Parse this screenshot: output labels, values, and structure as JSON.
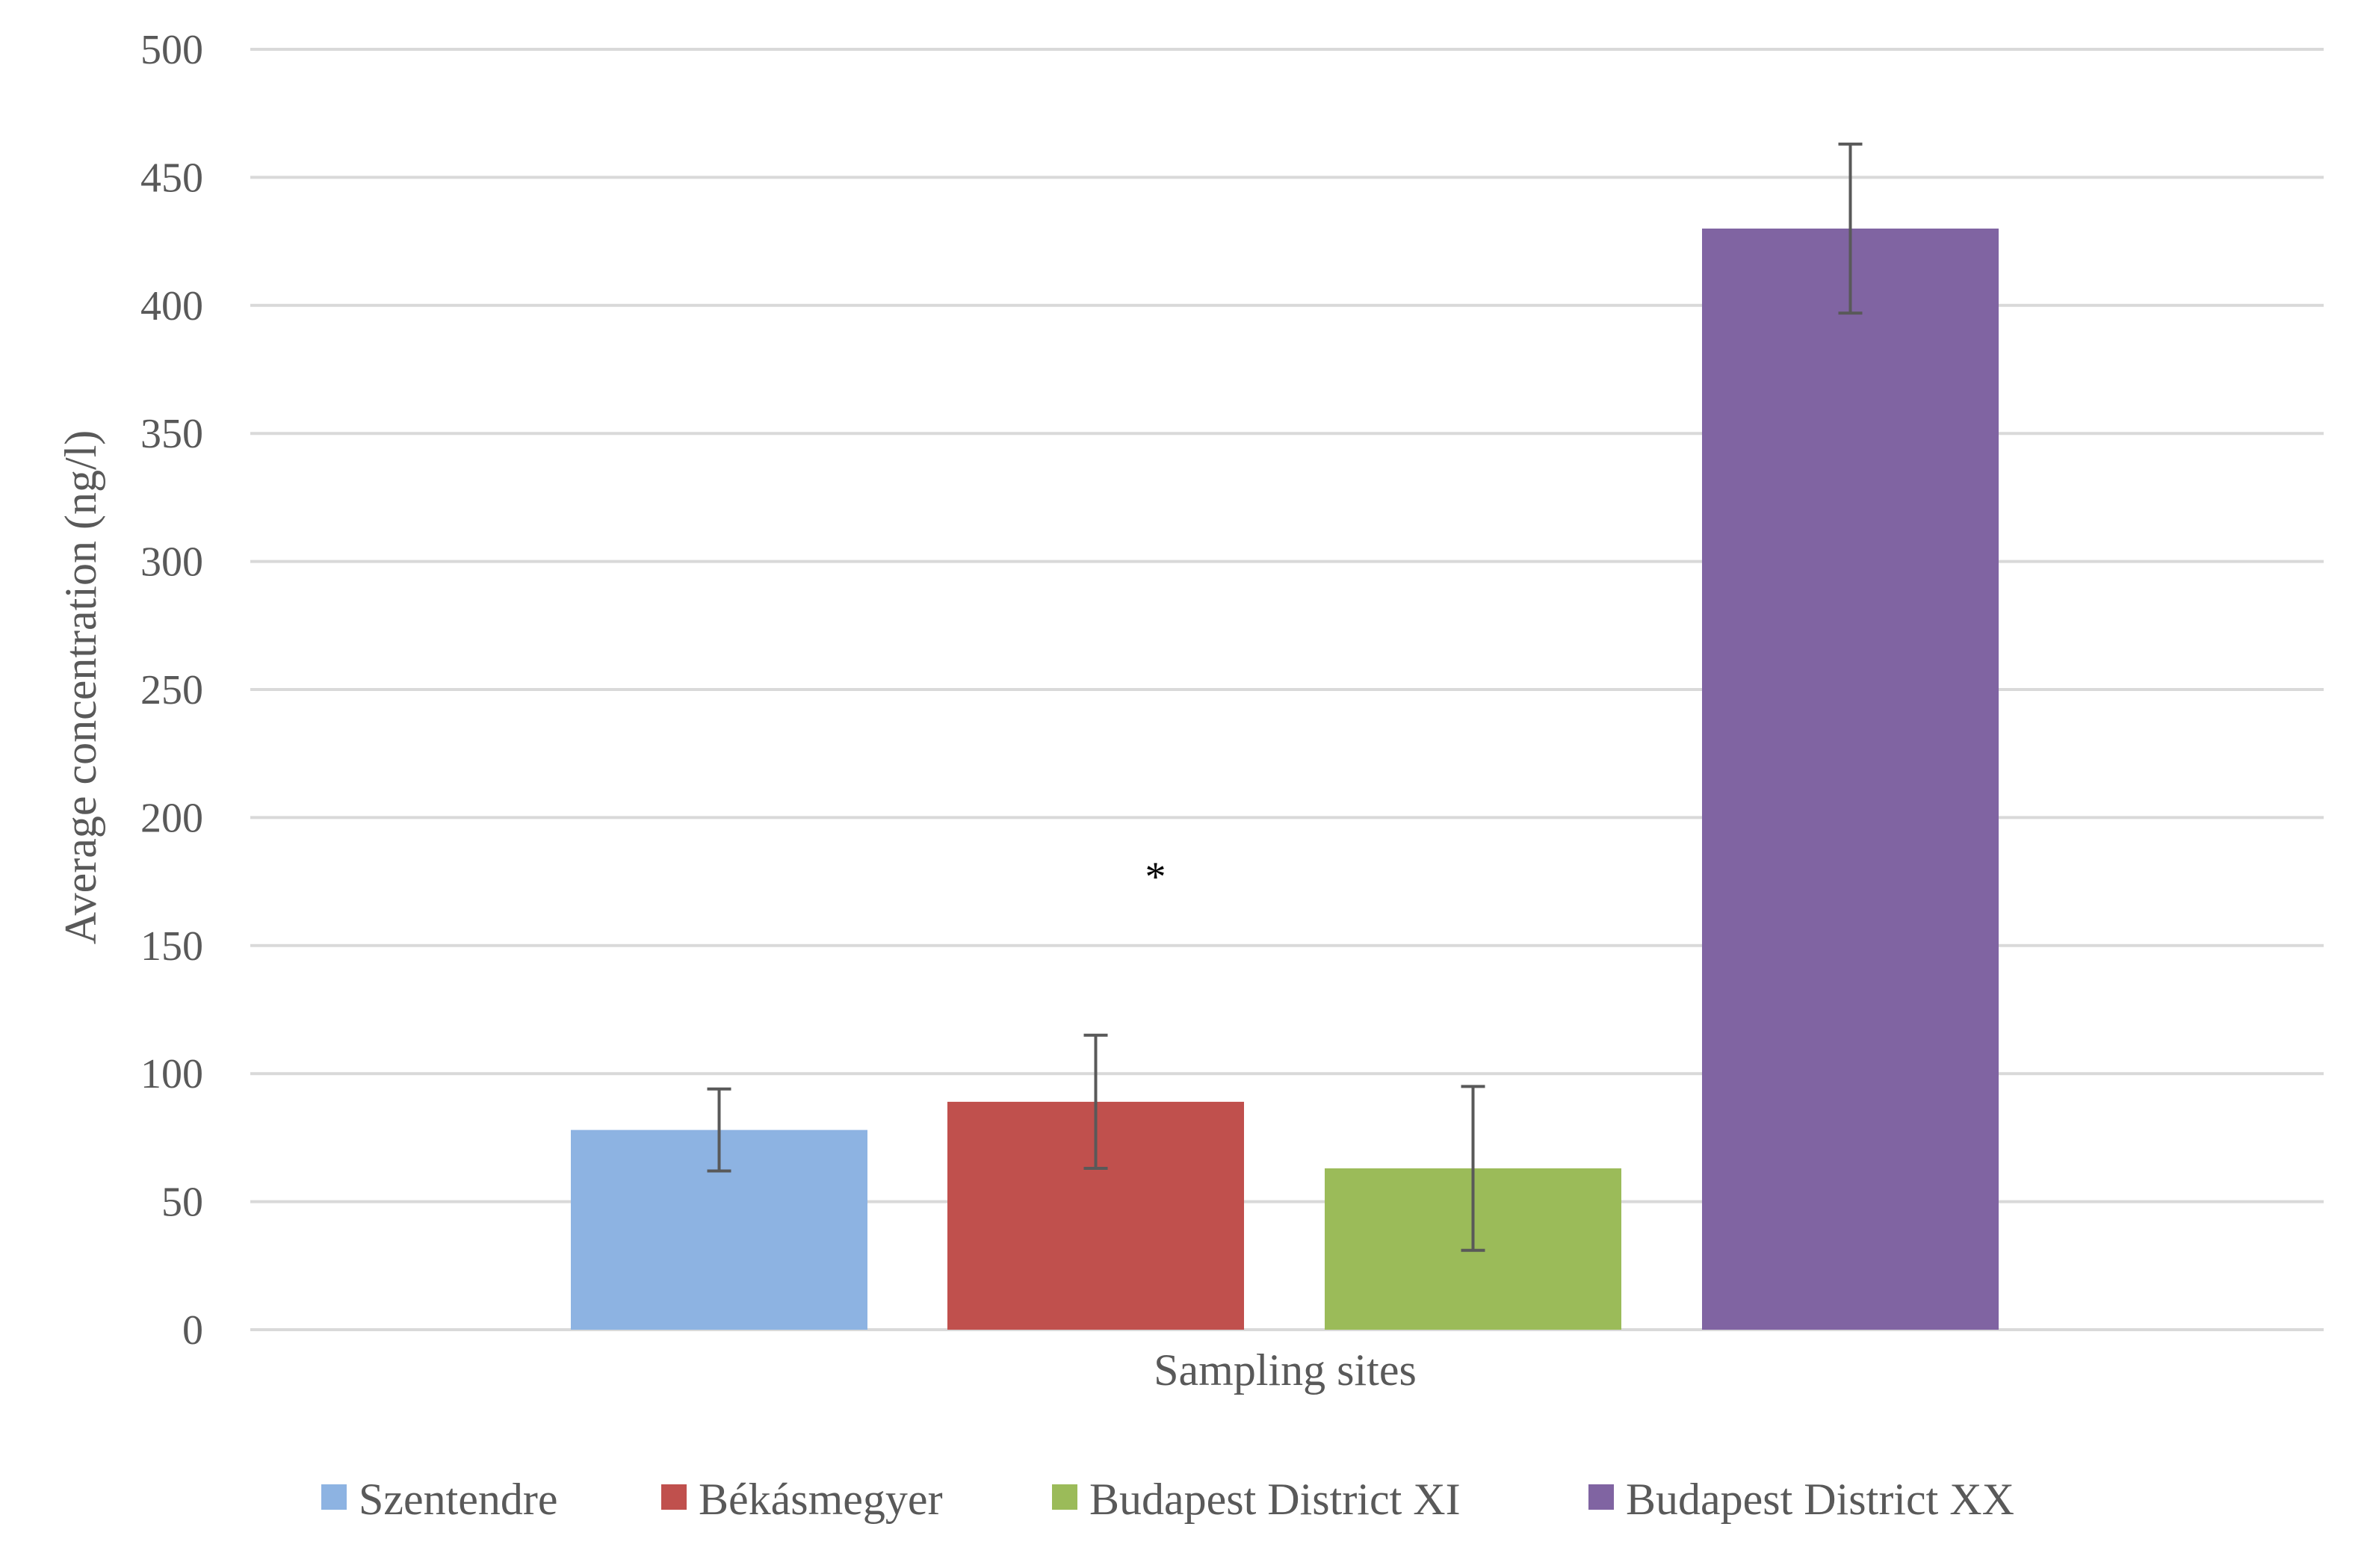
{
  "chart_data": {
    "type": "bar",
    "title": "",
    "xlabel": "Sampling sites",
    "ylabel": "Average concentration (ng/l)",
    "ylim": [
      0,
      500
    ],
    "yticks": [
      0,
      50,
      100,
      150,
      200,
      250,
      300,
      350,
      400,
      450,
      500
    ],
    "grid": true,
    "legend_position": "bottom",
    "series": [
      {
        "name": "Szentendre",
        "value": 78,
        "error": 16,
        "color": "#8DB3E2"
      },
      {
        "name": "Békásmegyer",
        "value": 89,
        "error": 26,
        "color": "#C0504D"
      },
      {
        "name": "Budapest District XI",
        "value": 63,
        "error": 32,
        "color": "#9BBB59"
      },
      {
        "name": "Budapest District XX",
        "value": 430,
        "error": 33,
        "color": "#8064A2"
      }
    ],
    "annotations": [
      {
        "text": "*",
        "series": "Békásmegyer",
        "y": 178
      }
    ]
  }
}
